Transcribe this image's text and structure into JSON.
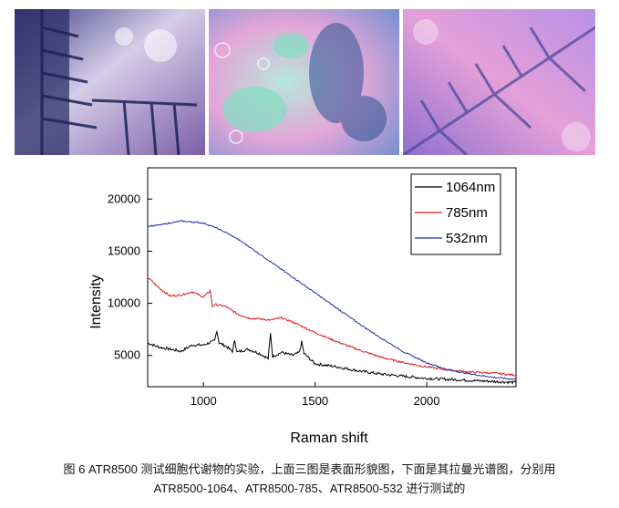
{
  "photos": [
    {
      "caption": "",
      "palette": [
        "#2a2f6a",
        "#d9cfe6",
        "#5a4a8c"
      ]
    },
    {
      "caption": "",
      "palette": [
        "#7fd8c8",
        "#e7a6d6",
        "#3a3f8f"
      ]
    },
    {
      "caption": "",
      "palette": [
        "#b98fe0",
        "#e58bc8",
        "#4a4a9a"
      ]
    }
  ],
  "chart_data": {
    "type": "line",
    "title": "",
    "xlabel": "Raman shift",
    "ylabel": "Intensity",
    "xlim": [
      750,
      2400
    ],
    "ylim": [
      2000,
      23000
    ],
    "xticks": [
      1000,
      1500,
      2000
    ],
    "yticks": [
      5000,
      10000,
      15000,
      20000
    ],
    "grid": false,
    "legend_placement": "top-right",
    "series": [
      {
        "name": "1064nm",
        "color": "#000000",
        "x": [
          750,
          800,
          850,
          900,
          950,
          1000,
          1050,
          1060,
          1070,
          1100,
          1130,
          1140,
          1150,
          1200,
          1250,
          1290,
          1300,
          1310,
          1350,
          1400,
          1430,
          1440,
          1450,
          1500,
          1600,
          1700,
          1800,
          1900,
          2000,
          2100,
          2200,
          2300,
          2400
        ],
        "values": [
          6200,
          5800,
          5600,
          5400,
          6000,
          6000,
          6400,
          7400,
          6200,
          5900,
          5400,
          6500,
          5300,
          5600,
          5200,
          4700,
          7100,
          4900,
          5300,
          5000,
          5300,
          6300,
          5200,
          4200,
          3900,
          3500,
          3200,
          3000,
          2800,
          2700,
          2600,
          2500,
          2400
        ]
      },
      {
        "name": "785nm",
        "color": "#e01b1b",
        "x": [
          750,
          800,
          850,
          900,
          950,
          1000,
          1030,
          1040,
          1050,
          1100,
          1150,
          1200,
          1250,
          1300,
          1350,
          1400,
          1500,
          1600,
          1700,
          1800,
          1900,
          2000,
          2100,
          2200,
          2300,
          2400
        ],
        "values": [
          12500,
          11500,
          10700,
          10800,
          11100,
          10600,
          11200,
          9700,
          9900,
          9700,
          9000,
          8600,
          8500,
          8400,
          8600,
          8200,
          7200,
          6300,
          5500,
          4800,
          4300,
          3900,
          3600,
          3400,
          3300,
          3100
        ]
      },
      {
        "name": "532nm",
        "color": "#1f2fb0",
        "x": [
          750,
          800,
          850,
          900,
          950,
          1000,
          1050,
          1100,
          1150,
          1200,
          1300,
          1400,
          1500,
          1600,
          1700,
          1800,
          1900,
          2000,
          2100,
          2200,
          2300,
          2400
        ],
        "values": [
          17400,
          17500,
          17700,
          17900,
          17800,
          17700,
          17300,
          16800,
          16200,
          15500,
          14000,
          12500,
          11000,
          9500,
          8000,
          6600,
          5300,
          4300,
          3600,
          3200,
          2900,
          2700
        ]
      }
    ]
  },
  "caption": {
    "line1": "图  6 ATR8500 测试细胞代谢物的实验，上面三图是表面形貌图，下面是其拉曼光谱图，分别用",
    "line2": "ATR8500-1064、ATR8500-785、ATR8500-532 进行测试的"
  }
}
